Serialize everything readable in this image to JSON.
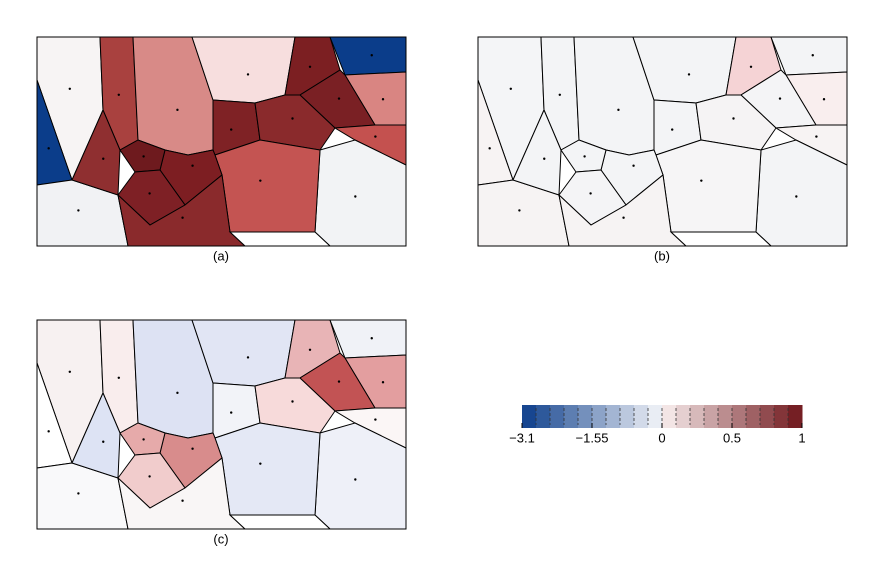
{
  "panels": [
    {
      "label": "(a)"
    },
    {
      "label": "(b)"
    },
    {
      "label": "(c)"
    }
  ],
  "colorbar": {
    "lim": [
      -3.1,
      1
    ],
    "ticks": [
      {
        "value": -3.1,
        "label": "−3.1"
      },
      {
        "value": -1.55,
        "label": "−1.55"
      },
      0,
      0.5,
      1
    ]
  }
}
